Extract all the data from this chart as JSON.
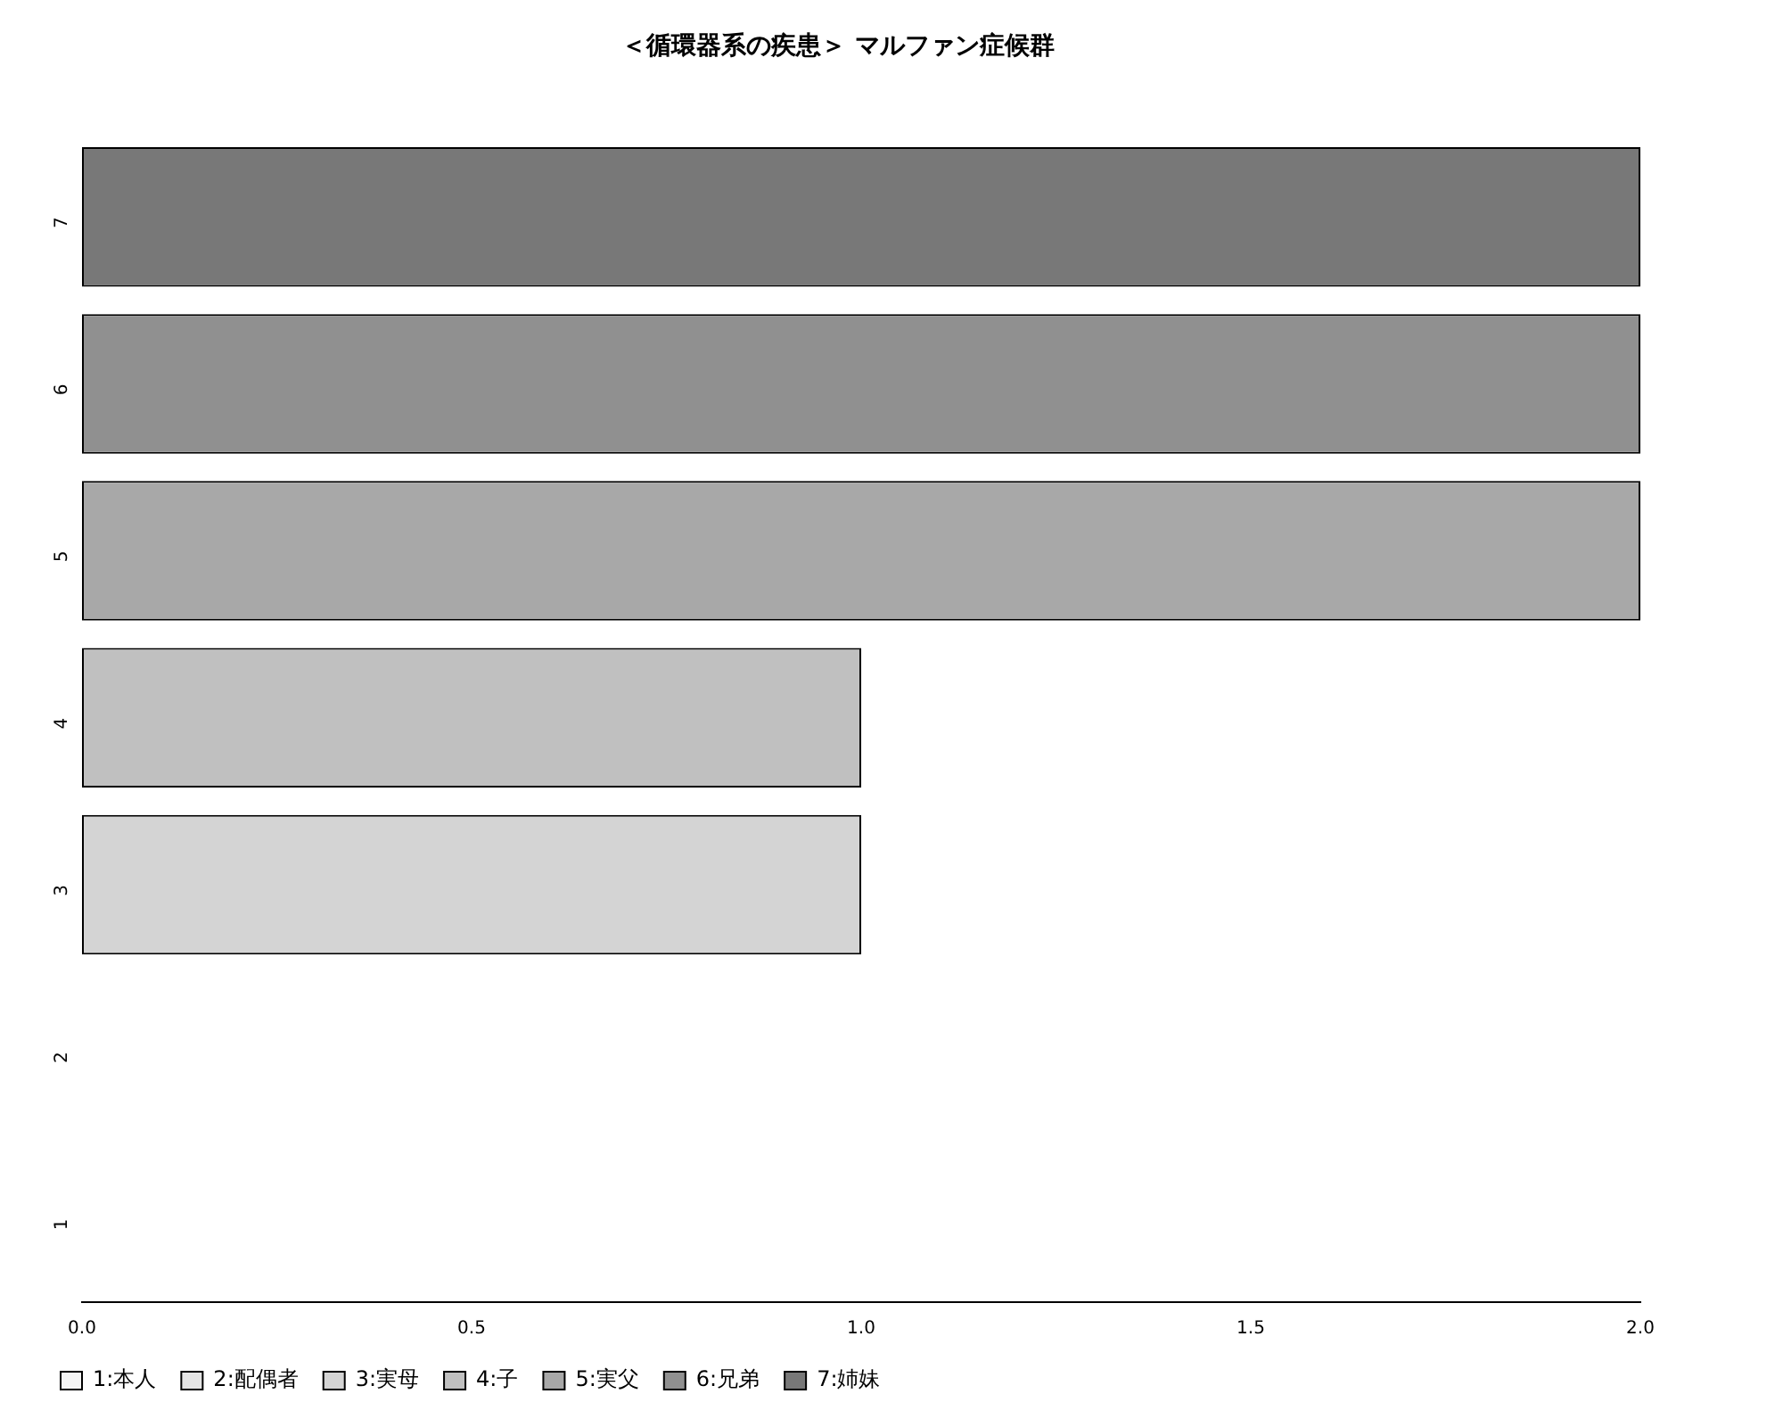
{
  "chart_data": {
    "type": "bar",
    "orientation": "horizontal",
    "stacked": true,
    "title": "＜循環器系の疾患＞ マルファン症候群",
    "categories": [
      "7",
      "6",
      "5",
      "4",
      "3",
      "2",
      "1"
    ],
    "series": [
      {
        "name": "1:本人",
        "color": "#f4f4f4",
        "values": [
          null,
          null,
          null,
          null,
          null,
          null,
          0
        ]
      },
      {
        "name": "2:配偶者",
        "color": "#e4e4e4",
        "values": [
          null,
          null,
          null,
          null,
          null,
          0,
          null
        ]
      },
      {
        "name": "3:実母",
        "color": "#d4d4d4",
        "values": [
          null,
          null,
          null,
          null,
          1,
          null,
          null
        ]
      },
      {
        "name": "4:子",
        "color": "#c0c0c0",
        "values": [
          null,
          null,
          null,
          1,
          null,
          null,
          null
        ]
      },
      {
        "name": "5:実父",
        "color": "#a8a8a8",
        "values": [
          null,
          null,
          2,
          null,
          null,
          null,
          null
        ]
      },
      {
        "name": "6:兄弟",
        "color": "#909090",
        "values": [
          null,
          2,
          null,
          null,
          null,
          null,
          null
        ]
      },
      {
        "name": "7:姉妹",
        "color": "#787878",
        "values": [
          2,
          null,
          null,
          null,
          null,
          null,
          null
        ]
      }
    ],
    "xlim": [
      0,
      2
    ],
    "xticks": [
      {
        "value": 0,
        "label": "0.0"
      },
      0.5,
      {
        "value": 1,
        "label": "1.0"
      },
      1.5,
      {
        "value": 2,
        "label": "2.0"
      }
    ],
    "grid": false,
    "legend": "bottom left"
  }
}
